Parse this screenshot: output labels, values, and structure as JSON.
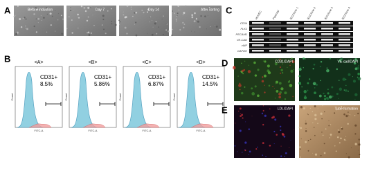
{
  "panels": {
    "a": {
      "label": "A",
      "images": [
        "Before induction",
        "Day 7",
        "Day 14",
        "After sorting"
      ]
    },
    "b": {
      "label": "B",
      "x_axis": "FITC-A",
      "y_axis": "Count",
      "groups": [
        {
          "title": "<A>",
          "marker": "CD31+",
          "percent": "8.5%"
        },
        {
          "title": "<B>",
          "marker": "CD31+",
          "percent": "5.86%"
        },
        {
          "title": "<C>",
          "marker": "CD31+",
          "percent": "6.87%"
        },
        {
          "title": "<D>",
          "marker": "CD31+",
          "percent": "14.5%"
        }
      ]
    },
    "c": {
      "label": "C",
      "columns": [
        "HUVEC",
        "Parental",
        "iECClone 1",
        "iECClone 2",
        "iECClone 3",
        "iECClone 4"
      ],
      "rows": [
        "CD34",
        "FLK1",
        "PECAM1",
        "VE-CAD",
        "vWF",
        "GAPDH"
      ]
    },
    "d": {
      "label": "D",
      "images": [
        "CD31/DAPI",
        "VE-cad/DAPI"
      ]
    },
    "e": {
      "label": "E",
      "images": [
        "LDL/DAPI",
        "Tube formation"
      ]
    }
  }
}
